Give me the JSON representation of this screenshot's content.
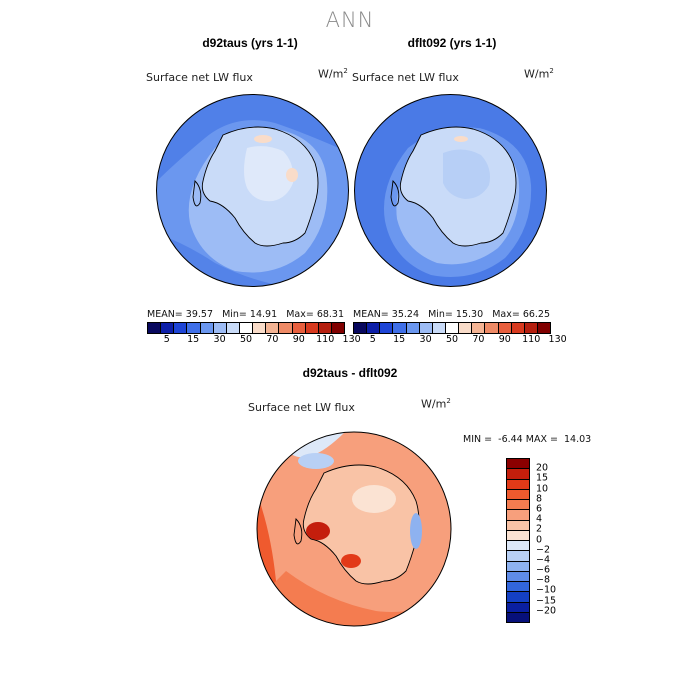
{
  "suptitle": "ANN",
  "chart_data": [
    {
      "type": "heatmap",
      "title": "d92taus (yrs 1-1)",
      "field": "Surface net LW flux",
      "units_base": "W/m",
      "units_exp": "2",
      "stats": {
        "mean_label": "MEAN=",
        "mean": "39.57",
        "min_label": "Min=",
        "min": "14.91",
        "max_label": "Max=",
        "max": "68.31"
      },
      "colorbar_labels": [
        "5",
        "15",
        "30",
        "50",
        "70",
        "90",
        "110",
        "130"
      ],
      "colorbar_colors": [
        "#08085e",
        "#0d1fa8",
        "#1e45d6",
        "#3f6fe8",
        "#6b97ef",
        "#9dbcf5",
        "#c9dbf8",
        "#ffffff",
        "#f9dcc9",
        "#f4b494",
        "#ee8a66",
        "#e85f3e",
        "#d83a1f",
        "#b51f0f",
        "#800000"
      ],
      "projection": "south-polar stereographic",
      "region": "Antarctica"
    },
    {
      "type": "heatmap",
      "title": "dflt092 (yrs 1-1)",
      "field": "Surface net LW flux",
      "units_base": "W/m",
      "units_exp": "2",
      "stats": {
        "mean_label": "MEAN=",
        "mean": "35.24",
        "min_label": "Min=",
        "min": "15.30",
        "max_label": "Max=",
        "max": "66.25"
      },
      "colorbar_labels": [
        "5",
        "15",
        "30",
        "50",
        "70",
        "90",
        "110",
        "130"
      ],
      "colorbar_colors": [
        "#08085e",
        "#0d1fa8",
        "#1e45d6",
        "#3f6fe8",
        "#6b97ef",
        "#9dbcf5",
        "#c9dbf8",
        "#ffffff",
        "#f9dcc9",
        "#f4b494",
        "#ee8a66",
        "#e85f3e",
        "#d83a1f",
        "#b51f0f",
        "#800000"
      ],
      "projection": "south-polar stereographic",
      "region": "Antarctica"
    },
    {
      "type": "heatmap",
      "title": "d92taus - dflt092",
      "field": "Surface net LW flux",
      "units_base": "W/m",
      "units_exp": "2",
      "stats": {
        "min_label": "MIN =",
        "min": "-6.44",
        "max_label": "MAX =",
        "max": "14.03"
      },
      "colorbar_labels": [
        "20",
        "15",
        "10",
        "8",
        "6",
        "4",
        "2",
        "0",
        "−2",
        "−4",
        "−6",
        "−8",
        "−10",
        "−15",
        "−20"
      ],
      "colorbar_colors": [
        "#8b0000",
        "#c41e0c",
        "#e23a18",
        "#ef5a2e",
        "#f47c50",
        "#f79f7c",
        "#f9c3a6",
        "#fbe3d3",
        "#dde8f8",
        "#b8d0f5",
        "#8eb2f0",
        "#5f8ce8",
        "#3266dc",
        "#1440c4",
        "#0a1fa0",
        "#07107a"
      ],
      "projection": "south-polar stereographic",
      "region": "Antarctica"
    }
  ]
}
